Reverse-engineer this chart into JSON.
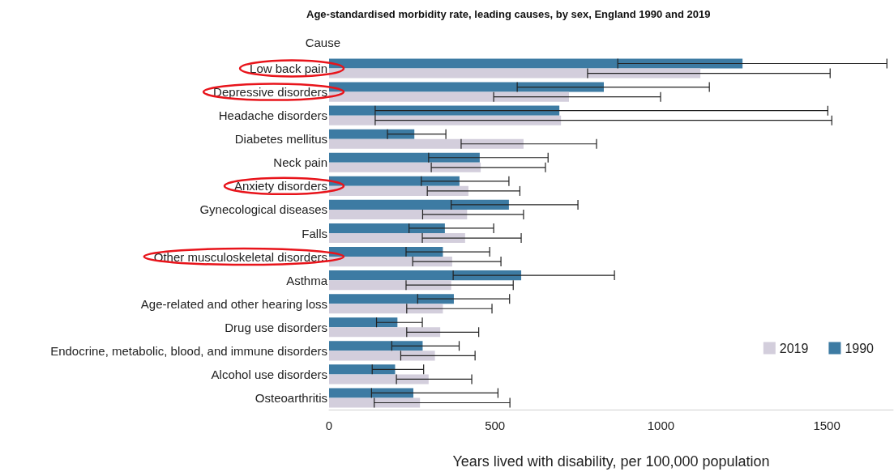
{
  "chart_data": {
    "type": "bar",
    "orientation": "horizontal",
    "title": "Age-standardised morbidity rate, leading causes, by sex, England 1990 and 2019",
    "xlabel": "Years lived with disability, per 100,000 population",
    "ylabel": "Cause",
    "categories": [
      "Low back pain",
      "Depressive disorders",
      "Headache disorders",
      "Diabetes mellitus",
      "Neck pain",
      "Anxiety disorders",
      "Gynecological diseases",
      "Falls",
      "Other musculoskeletal disorders",
      "Asthma",
      "Age-related and other hearing loss",
      "Drug use disorders",
      "Endocrine, metabolic, blood, and immune disorders",
      "Alcohol use disorders",
      "Osteoarthritis"
    ],
    "series": [
      {
        "name": "2019",
        "color": "#d3cedc",
        "values": [
          1119,
          723,
          699,
          586,
          457,
          420,
          416,
          410,
          371,
          368,
          343,
          335,
          319,
          300,
          274
        ],
        "errors": [
          [
            779,
            1510
          ],
          [
            496,
            999
          ],
          [
            139,
            1515
          ],
          [
            398,
            806
          ],
          [
            308,
            652
          ],
          [
            296,
            575
          ],
          [
            282,
            586
          ],
          [
            281,
            579
          ],
          [
            252,
            518
          ],
          [
            232,
            555
          ],
          [
            234,
            491
          ],
          [
            234,
            451
          ],
          [
            216,
            440
          ],
          [
            203,
            430
          ],
          [
            136,
            545
          ]
        ]
      },
      {
        "name": "1990",
        "color": "#3d7ba3",
        "values": [
          1246,
          828,
          694,
          257,
          454,
          393,
          542,
          349,
          343,
          579,
          376,
          206,
          282,
          199,
          254
        ],
        "errors": [
          [
            870,
            1681
          ],
          [
            567,
            1146
          ],
          [
            139,
            1503
          ],
          [
            176,
            352
          ],
          [
            300,
            660
          ],
          [
            278,
            542
          ],
          [
            368,
            750
          ],
          [
            241,
            496
          ],
          [
            232,
            484
          ],
          [
            374,
            860
          ],
          [
            267,
            544
          ],
          [
            143,
            281
          ],
          [
            189,
            392
          ],
          [
            130,
            285
          ],
          [
            128,
            509
          ]
        ]
      }
    ],
    "xlim": [
      0,
      1700
    ],
    "xticks": [
      0,
      500,
      1000,
      1500
    ],
    "grid": false,
    "legend": "bottom right"
  }
}
